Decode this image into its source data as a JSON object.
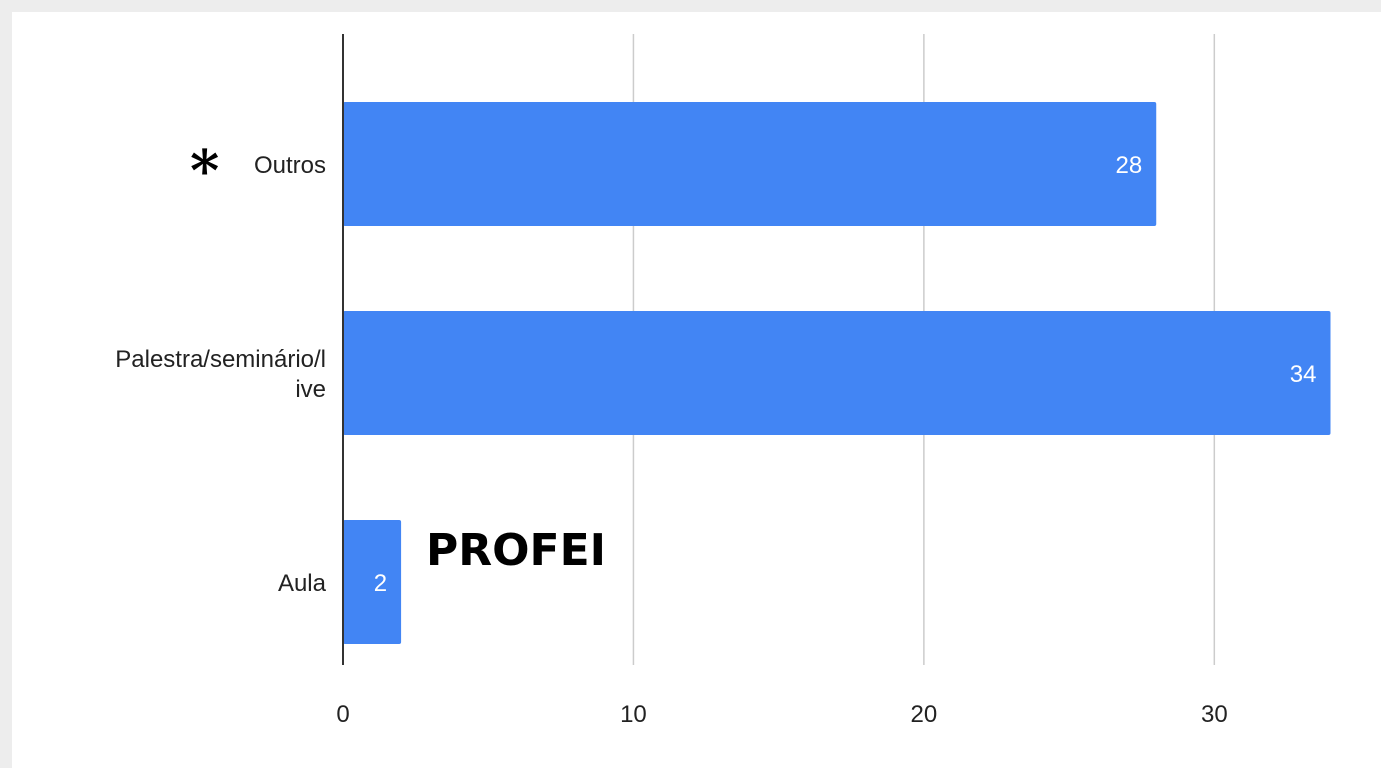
{
  "chart_data": {
    "type": "bar",
    "orientation": "horizontal",
    "categories": [
      [
        "Outros"
      ],
      [
        "Palestra/seminário/l",
        "ive"
      ],
      [
        "Aula"
      ]
    ],
    "values": [
      28,
      34,
      2
    ],
    "data_labels": [
      "28",
      "34",
      "2"
    ],
    "xlim": [
      0,
      34
    ],
    "x_ticks": [
      0,
      10,
      20,
      30
    ],
    "x_tick_labels": [
      "0",
      "10",
      "20",
      "30"
    ],
    "grid": true,
    "legend": "none",
    "title": "",
    "xlabel": "",
    "ylabel": "",
    "colors": {
      "bar": "#4285f4",
      "grid": "#cccccc",
      "axis": "#333333"
    },
    "annotations": {
      "marker": "*",
      "marker_target": "Outros",
      "text": "PROFEI",
      "text_target": "Aula"
    }
  }
}
